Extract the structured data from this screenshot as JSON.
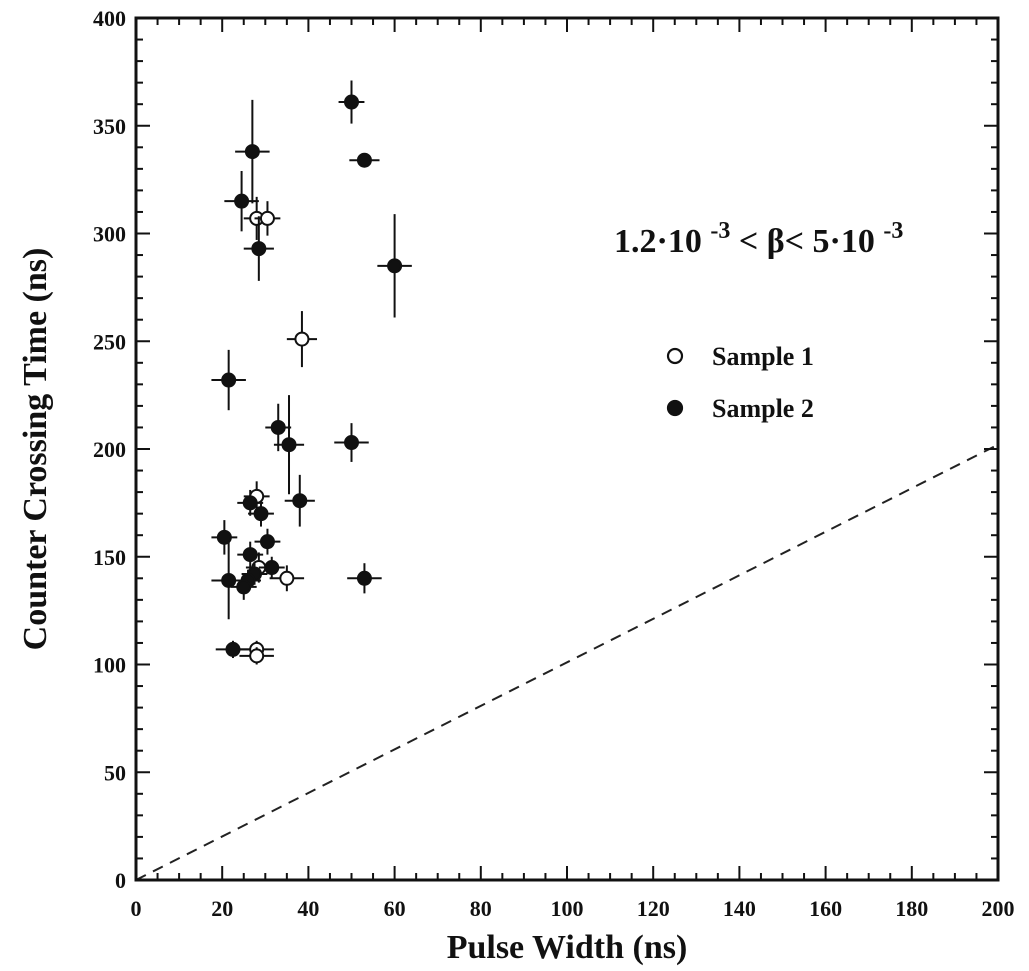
{
  "chart_data": {
    "type": "scatter",
    "xlabel": "Pulse Width (ns)",
    "ylabel": "Counter Crossing Time (ns)",
    "xlim": [
      0,
      200
    ],
    "ylim": [
      0,
      400
    ],
    "x_ticks": [
      0,
      20,
      40,
      60,
      80,
      100,
      120,
      140,
      160,
      180,
      200
    ],
    "y_ticks": [
      0,
      50,
      100,
      150,
      200,
      250,
      300,
      350,
      400
    ],
    "x_tick_labels": [
      "0",
      "20",
      "40",
      "60",
      "80",
      "100",
      "120",
      "140",
      "160",
      "180",
      "200"
    ],
    "y_tick_labels": [
      "0",
      "50",
      "100",
      "150",
      "200",
      "250",
      "300",
      "350",
      "400"
    ],
    "grid": false,
    "legend_position": "center-right",
    "annotation": {
      "parts": [
        "1.2·10",
        "-3",
        "< β< 5·10",
        "-3"
      ],
      "position": "upper-right"
    },
    "reference_line": {
      "style": "dashed",
      "x": [
        0,
        200
      ],
      "y": [
        0,
        202
      ]
    },
    "series": [
      {
        "name": "Sample 1",
        "marker": "open-circle",
        "points": [
          {
            "x": 28,
            "y": 307,
            "xerr": 3,
            "yerr": 10
          },
          {
            "x": 30.5,
            "y": 307,
            "xerr": 3,
            "yerr": 8
          },
          {
            "x": 38.5,
            "y": 251,
            "xerr": 3.5,
            "yerr": 13
          },
          {
            "x": 28,
            "y": 178,
            "xerr": 3,
            "yerr": 7
          },
          {
            "x": 28.5,
            "y": 145,
            "xerr": 3,
            "yerr": 7
          },
          {
            "x": 35,
            "y": 140,
            "xerr": 4,
            "yerr": 6
          },
          {
            "x": 28,
            "y": 107,
            "xerr": 4,
            "yerr": 4
          },
          {
            "x": 28,
            "y": 104,
            "xerr": 4,
            "yerr": 4
          }
        ]
      },
      {
        "name": "Sample 2",
        "marker": "filled-circle",
        "points": [
          {
            "x": 50,
            "y": 361,
            "xerr": 3,
            "yerr": 10
          },
          {
            "x": 53,
            "y": 334,
            "xerr": 3.5,
            "yerr": 3
          },
          {
            "x": 27,
            "y": 338,
            "xerr": 4,
            "yerr": 24
          },
          {
            "x": 24.5,
            "y": 315,
            "xerr": 4,
            "yerr": 14
          },
          {
            "x": 28.5,
            "y": 293,
            "xerr": 3.5,
            "yerr": 15
          },
          {
            "x": 60,
            "y": 285,
            "xerr": 4,
            "yerr": 24
          },
          {
            "x": 21.5,
            "y": 232,
            "xerr": 4,
            "yerr": 14
          },
          {
            "x": 33,
            "y": 210,
            "xerr": 3,
            "yerr": 11
          },
          {
            "x": 35.5,
            "y": 202,
            "xerr": 3.5,
            "yerr": 23
          },
          {
            "x": 50,
            "y": 203,
            "xerr": 4,
            "yerr": 9
          },
          {
            "x": 38,
            "y": 176,
            "xerr": 3.5,
            "yerr": 12
          },
          {
            "x": 26.5,
            "y": 175,
            "xerr": 3,
            "yerr": 6
          },
          {
            "x": 29,
            "y": 170,
            "xerr": 3,
            "yerr": 6
          },
          {
            "x": 20.5,
            "y": 159,
            "xerr": 3,
            "yerr": 8
          },
          {
            "x": 30.5,
            "y": 157,
            "xerr": 3,
            "yerr": 6
          },
          {
            "x": 26.5,
            "y": 151,
            "xerr": 3,
            "yerr": 6
          },
          {
            "x": 31.5,
            "y": 145,
            "xerr": 3,
            "yerr": 5
          },
          {
            "x": 27.5,
            "y": 142,
            "xerr": 3,
            "yerr": 5
          },
          {
            "x": 21.5,
            "y": 139,
            "xerr": 4,
            "yerr": 18
          },
          {
            "x": 26,
            "y": 139,
            "xerr": 3,
            "yerr": 5
          },
          {
            "x": 25,
            "y": 136,
            "xerr": 3,
            "yerr": 6
          },
          {
            "x": 53,
            "y": 140,
            "xerr": 4,
            "yerr": 7
          },
          {
            "x": 22.5,
            "y": 107,
            "xerr": 4,
            "yerr": 4
          }
        ]
      }
    ]
  }
}
